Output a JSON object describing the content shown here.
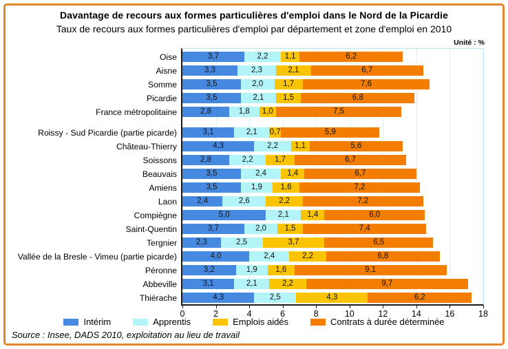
{
  "header": {
    "title": "Davantage de recours aux formes particulières d'emploi dans le Nord de la Picardie",
    "subtitle": "Taux de recours aux formes particulières d'emploi par département et zone d'emploi en 2010",
    "unit": "Unité : %"
  },
  "chart_data": {
    "type": "bar",
    "orientation": "horizontal",
    "stacked": true,
    "title": "Taux de recours aux formes particulières d'emploi par département et zone d'emploi en 2010",
    "xlabel": "",
    "ylabel": "",
    "xlim": [
      0,
      18
    ],
    "xticks": [
      0,
      2,
      4,
      6,
      8,
      10,
      12,
      14,
      16,
      18
    ],
    "grid": true,
    "legend_position": "bottom",
    "decimal_separator": ",",
    "value_labels": "inside-segments",
    "group_gap_after_index": 4,
    "categories": [
      "Oise",
      "Aisne",
      "Somme",
      "Picardie",
      "France métropolitaine",
      "Roissy - Sud Picardie  (partie picarde)",
      "Château-Thierry",
      "Soissons",
      "Beauvais",
      "Amiens",
      "Laon",
      "Compiègne",
      "Saint-Quentin",
      "Tergnier",
      "Vallée de la Bresle - Vimeu (partie picarde)",
      "Péronne",
      "Abbeville",
      "Thiérache"
    ],
    "series": [
      {
        "name": "Intérim",
        "color": "#4689e0",
        "values": [
          3.7,
          3.3,
          3.5,
          3.5,
          2.8,
          3.1,
          4.3,
          2.8,
          3.5,
          3.5,
          2.4,
          5.0,
          3.7,
          2.3,
          4.0,
          3.2,
          3.1,
          4.3
        ]
      },
      {
        "name": "Apprentis",
        "color": "#b2f4f8",
        "values": [
          2.2,
          2.3,
          2.0,
          2.1,
          1.8,
          2.1,
          2.2,
          2.2,
          2.4,
          1.9,
          2.6,
          2.1,
          2.0,
          2.5,
          2.4,
          1.9,
          2.1,
          2.5
        ]
      },
      {
        "name": "Emplois aidés",
        "color": "#fbc400",
        "values": [
          1.1,
          2.1,
          1.7,
          1.5,
          1.0,
          0.7,
          1.1,
          1.7,
          1.4,
          1.6,
          2.2,
          1.4,
          1.5,
          3.7,
          2.2,
          1.6,
          2.2,
          4.3
        ]
      },
      {
        "name": "Contrats à durée déterminée",
        "color": "#f27d00",
        "values": [
          6.2,
          6.7,
          7.6,
          6.8,
          7.5,
          5.9,
          5.6,
          6.7,
          6.7,
          7.2,
          7.2,
          6.0,
          7.4,
          6.5,
          6.8,
          9.1,
          9.7,
          6.2
        ]
      }
    ]
  },
  "footer": {
    "source": "Source : Insee, DADS 2010, exploitation au lieu de travail"
  },
  "style_colors": {
    "frame_border": "#e0882a",
    "grid": "#b9e7ef",
    "axis": "#1a1a1a"
  }
}
